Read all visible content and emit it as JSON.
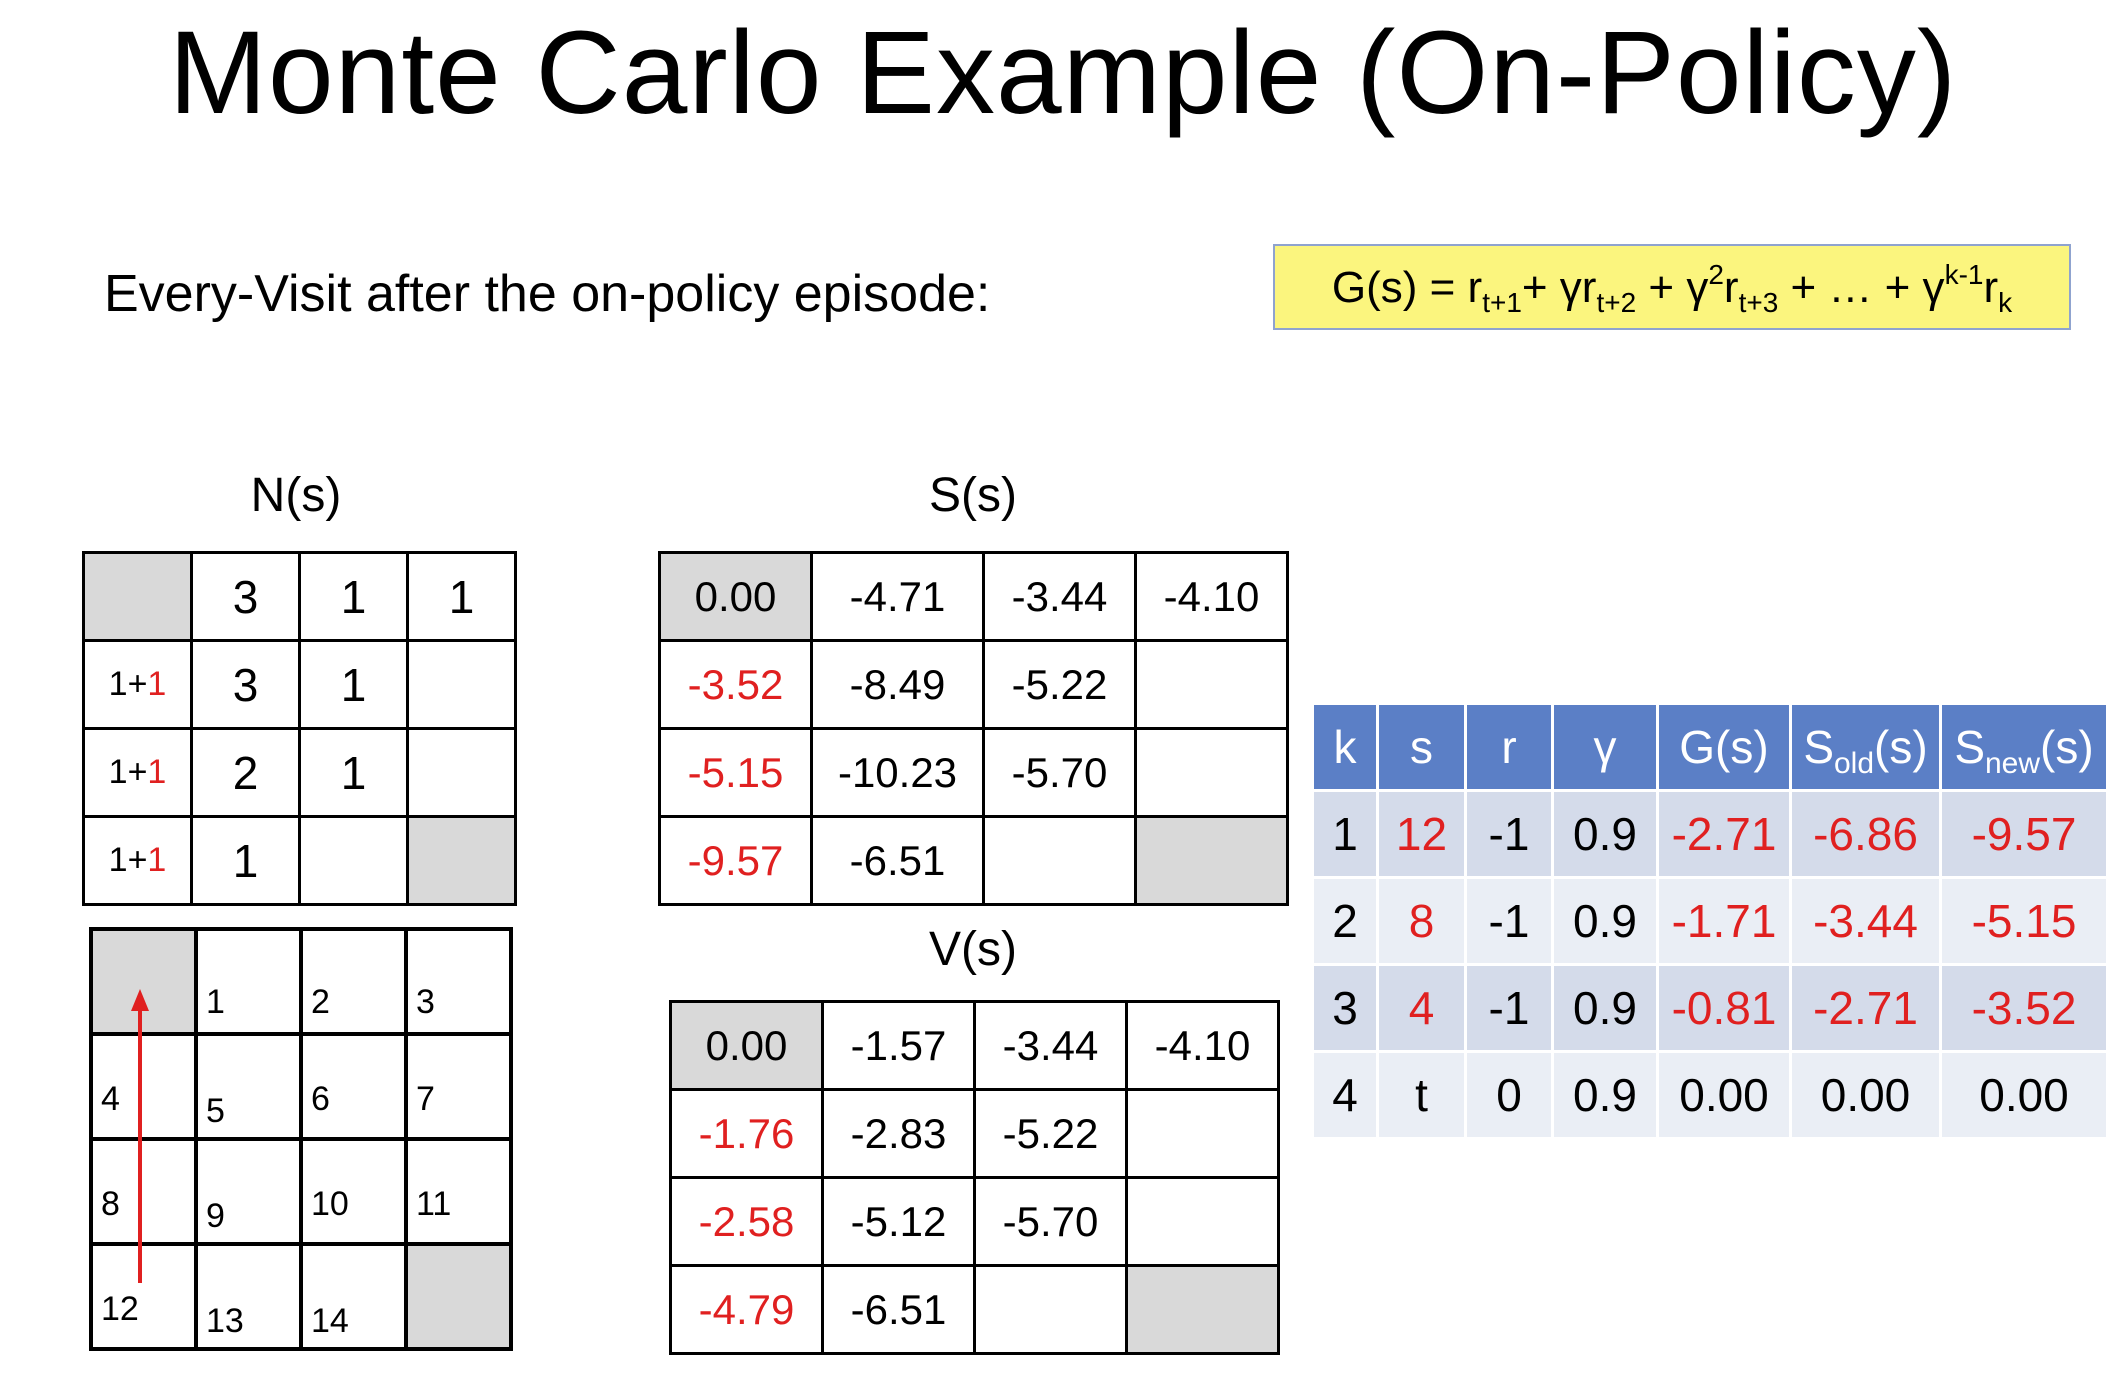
{
  "title": "Monte Carlo Example (On-Policy)",
  "subtitle": "Every-Visit after the on-policy episode:",
  "formula": {
    "g": "G(s) = r",
    "s1": "t+1",
    "p1": "+ γr",
    "s2": "t+2",
    "p2": " + γ",
    "e2": "2",
    "p3": "r",
    "s3": "t+3",
    "p4": " + … + γ",
    "ek": "k-1",
    "p5": "r",
    "sk": "k"
  },
  "ns": {
    "caption": "N(s)",
    "rows": [
      [
        "",
        "3",
        "1",
        "1"
      ],
      [
        "1+",
        "3",
        "1",
        ""
      ],
      [
        "1+",
        "2",
        "1",
        ""
      ],
      [
        "1+",
        "1",
        "",
        ""
      ]
    ],
    "increment": "1"
  },
  "ss": {
    "caption": "S(s)",
    "rows": [
      [
        "0.00",
        "-4.71",
        "-3.44",
        "-4.10"
      ],
      [
        "-3.52",
        "-8.49",
        "-5.22",
        ""
      ],
      [
        "-5.15",
        "-10.23",
        "-5.70",
        ""
      ],
      [
        "-9.57",
        "-6.51",
        "",
        ""
      ]
    ]
  },
  "vs": {
    "caption": "V(s)",
    "rows": [
      [
        "0.00",
        "-1.57",
        "-3.44",
        "-4.10"
      ],
      [
        "-1.76",
        "-2.83",
        "-5.22",
        ""
      ],
      [
        "-2.58",
        "-5.12",
        "-5.70",
        ""
      ],
      [
        "-4.79",
        "-6.51",
        "",
        ""
      ]
    ]
  },
  "grid_world": {
    "cells": [
      [
        "",
        "1",
        "2",
        "3"
      ],
      [
        "4",
        "5",
        "6",
        "7"
      ],
      [
        "8",
        "9",
        "10",
        "11"
      ],
      [
        "12",
        "13",
        "14",
        ""
      ]
    ],
    "arrow_color": "#e02020"
  },
  "mc_table": {
    "headers": [
      "k",
      "s",
      "r",
      "γ",
      "G(s)",
      "S",
      "(s)",
      "S",
      "(s)"
    ],
    "sub_old": "old",
    "sub_new": "new",
    "rows": [
      [
        "1",
        "12",
        "-1",
        "0.9",
        "-2.71",
        "-6.86",
        "-9.57"
      ],
      [
        "2",
        "8",
        "-1",
        "0.9",
        "-1.71",
        "-3.44",
        "-5.15"
      ],
      [
        "3",
        "4",
        "-1",
        "0.9",
        "-0.81",
        "-2.71",
        "-3.52"
      ],
      [
        "4",
        "t",
        "0",
        "0.9",
        "0.00",
        "0.00",
        "0.00"
      ]
    ]
  },
  "colors": {
    "red": "#e02020",
    "header_blue": "#5b7fc6",
    "formula_bg": "#fbf57e",
    "gray_cell": "#d9d9d9"
  }
}
